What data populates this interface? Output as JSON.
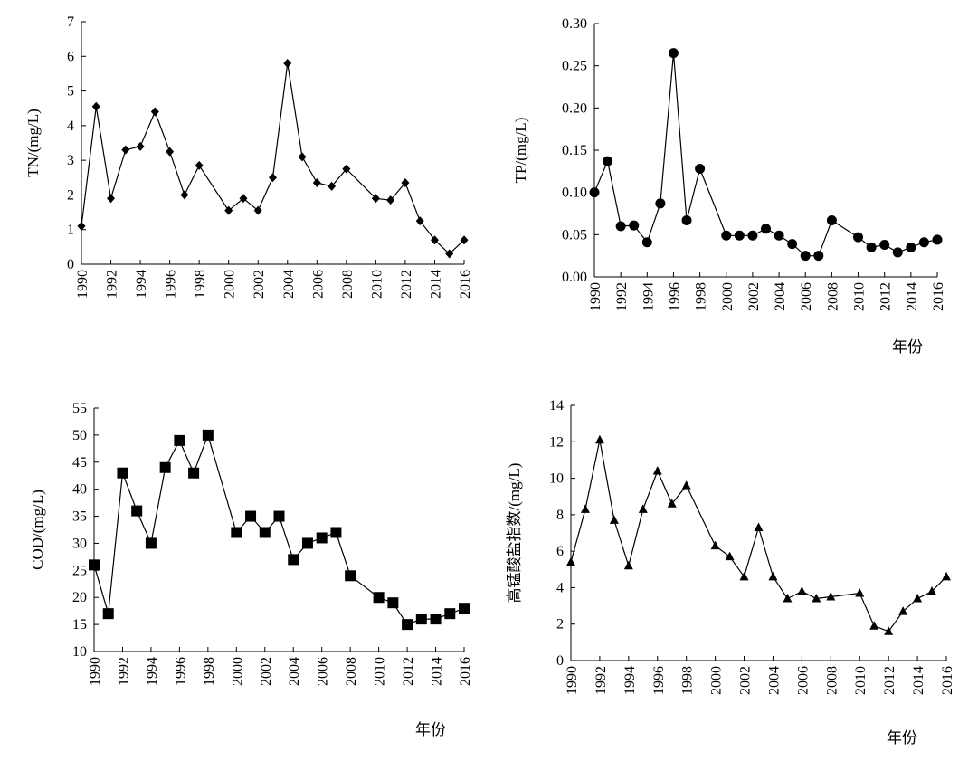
{
  "chart_data": [
    {
      "type": "line",
      "ylabel": "TN/(mg/L)",
      "xlabel": "",
      "ylim": [
        0,
        7
      ],
      "y_ticks": [
        "0",
        "1",
        "2",
        "3",
        "4",
        "5",
        "6",
        "7"
      ],
      "x_ticks": [
        "1990",
        "1992",
        "1994",
        "1996",
        "1998",
        "2000",
        "2002",
        "2004",
        "2006",
        "2008",
        "2010",
        "2012",
        "2014",
        "2016"
      ],
      "xlim": [
        1990,
        2016
      ],
      "marker": "diamond",
      "grid": false,
      "series": [
        {
          "x": [
            1990,
            1991,
            1992,
            1993,
            1994,
            1995,
            1996,
            1997,
            1998,
            2000,
            2001,
            2002,
            2003,
            2004,
            2005,
            2006,
            2007,
            2008,
            2010,
            2011,
            2012,
            2013,
            2014,
            2015,
            2016
          ],
          "values": [
            1.1,
            4.55,
            1.9,
            3.3,
            3.4,
            4.4,
            3.25,
            2.0,
            2.85,
            1.55,
            1.9,
            1.55,
            2.5,
            5.8,
            3.1,
            2.35,
            2.25,
            2.75,
            1.9,
            1.85,
            2.35,
            1.25,
            0.7,
            0.3,
            0.7
          ]
        }
      ]
    },
    {
      "type": "line",
      "ylabel": "TP/(mg/L)",
      "xlabel": "年份",
      "ylim": [
        0,
        0.3
      ],
      "y_ticks": [
        "0.00",
        "0.05",
        "0.10",
        "0.15",
        "0.20",
        "0.25",
        "0.30"
      ],
      "x_ticks": [
        "1990",
        "1992",
        "1994",
        "1996",
        "1998",
        "2000",
        "2002",
        "2004",
        "2006",
        "2008",
        "2010",
        "2012",
        "2014",
        "2016"
      ],
      "xlim": [
        1990,
        2016
      ],
      "marker": "circle",
      "grid": false,
      "series": [
        {
          "x": [
            1990,
            1991,
            1992,
            1993,
            1994,
            1995,
            1996,
            1997,
            1998,
            2000,
            2001,
            2002,
            2003,
            2004,
            2005,
            2006,
            2007,
            2008,
            2010,
            2011,
            2012,
            2013,
            2014,
            2015,
            2016
          ],
          "values": [
            0.1,
            0.137,
            0.06,
            0.061,
            0.041,
            0.087,
            0.265,
            0.067,
            0.128,
            0.049,
            0.049,
            0.049,
            0.057,
            0.049,
            0.039,
            0.025,
            0.025,
            0.067,
            0.047,
            0.035,
            0.038,
            0.029,
            0.035,
            0.041,
            0.044
          ]
        }
      ]
    },
    {
      "type": "line",
      "ylabel": "COD/(mg/L)",
      "xlabel": "年份",
      "ylim": [
        10,
        55
      ],
      "y_ticks": [
        "10",
        "15",
        "20",
        "25",
        "30",
        "35",
        "40",
        "45",
        "50",
        "55"
      ],
      "x_ticks": [
        "1990",
        "1992",
        "1994",
        "1996",
        "1998",
        "2000",
        "2002",
        "2004",
        "2006",
        "2008",
        "2010",
        "2012",
        "2014",
        "2016"
      ],
      "xlim": [
        1990,
        2016
      ],
      "marker": "square",
      "grid": false,
      "series": [
        {
          "x": [
            1990,
            1991,
            1992,
            1993,
            1994,
            1995,
            1996,
            1997,
            1998,
            2000,
            2001,
            2002,
            2003,
            2004,
            2005,
            2006,
            2007,
            2008,
            2010,
            2011,
            2012,
            2013,
            2014,
            2015,
            2016
          ],
          "values": [
            26,
            17,
            43,
            36,
            30,
            44,
            49,
            43,
            50,
            32,
            35,
            32,
            35,
            27,
            30,
            31,
            32,
            24,
            20,
            19,
            15,
            16,
            16,
            17,
            18
          ]
        }
      ]
    },
    {
      "type": "line",
      "ylabel": "高锰酸盐指数/(mg/L)",
      "xlabel": "年份",
      "ylim": [
        0,
        14
      ],
      "y_ticks": [
        "0",
        "2",
        "4",
        "6",
        "8",
        "10",
        "12",
        "14"
      ],
      "x_ticks": [
        "1990",
        "1992",
        "1994",
        "1996",
        "1998",
        "2000",
        "2002",
        "2004",
        "2006",
        "2008",
        "2010",
        "2012",
        "2014",
        "2016"
      ],
      "xlim": [
        1990,
        2016
      ],
      "marker": "triangle",
      "grid": false,
      "series": [
        {
          "x": [
            1990,
            1991,
            1992,
            1993,
            1994,
            1995,
            1996,
            1997,
            1998,
            2000,
            2001,
            2002,
            2003,
            2004,
            2005,
            2006,
            2007,
            2008,
            2010,
            2011,
            2012,
            2013,
            2014,
            2015,
            2016
          ],
          "values": [
            5.4,
            8.3,
            12.1,
            7.7,
            5.2,
            8.3,
            10.4,
            8.6,
            9.6,
            6.3,
            5.7,
            4.6,
            7.3,
            4.6,
            3.4,
            3.8,
            3.4,
            3.5,
            3.7,
            1.9,
            1.6,
            2.7,
            3.4,
            3.8,
            4.6
          ]
        }
      ]
    }
  ]
}
